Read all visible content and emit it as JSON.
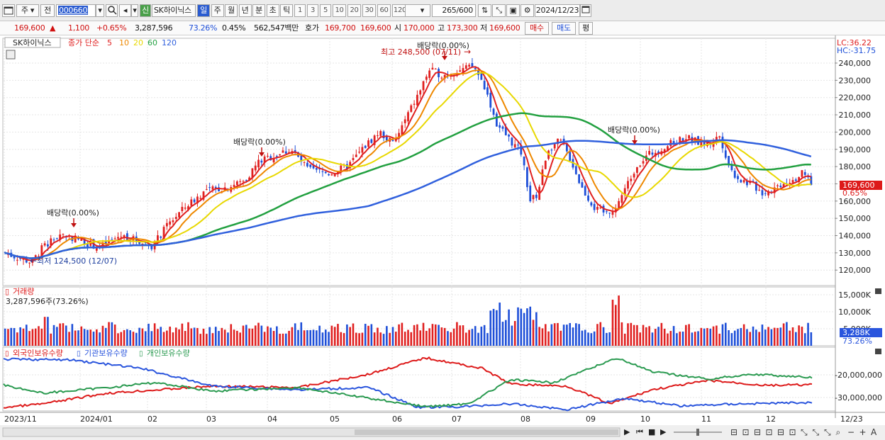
{
  "toolbar": {
    "ju": "주",
    "jeon": "전",
    "code": "000660",
    "name": "SK하이닉스",
    "sin": "신",
    "periods": [
      "일",
      "주",
      "월",
      "년",
      "분",
      "초",
      "틱"
    ],
    "nums": [
      "1",
      "3",
      "5",
      "10",
      "20",
      "30",
      "60",
      "120"
    ],
    "count": "265",
    "total": "/600",
    "date": "2024/12/23"
  },
  "quote": {
    "price": "169,600",
    "change": "1,100",
    "pct": "+0.65%",
    "volume": "3,287,596",
    "vol_ratio": "73.26%",
    "turnover": "0.45%",
    "amount": "562,547백만",
    "hoga_label": "호가",
    "ask": "169,700",
    "bid": "169,600",
    "open_label": "시",
    "open": "170,000",
    "high_label": "고",
    "high": "173,300",
    "low_label": "저",
    "low": "169,600",
    "buy": "매수",
    "sell": "매도",
    "flat": "평"
  },
  "legend": {
    "stock": "SK하이닉스",
    "ma_prefix": "종가 단순",
    "ma": [
      "5",
      "10",
      "20",
      "60",
      "120"
    ],
    "ma_colors": [
      "#e02020",
      "#ee8800",
      "#e8d800",
      "#22a040",
      "#3060dd"
    ]
  },
  "annot": {
    "lc": "LC:36.22",
    "hc": "HC:-31.75",
    "max": "최고 248,500 (07/11)",
    "min": "최저 124,500 (12/07)",
    "div": "배당락(0.00%)"
  },
  "vol_legend": {
    "title": "거래량",
    "value": "3,287,596주(73.26%)"
  },
  "holders": {
    "foreign": "외국인보유수량",
    "inst": "기관보유수량",
    "indiv": "개인보유수량"
  },
  "price_badge": {
    "price": "169,600",
    "pct": "0.65%"
  },
  "vol_badge": {
    "value": "3,288K",
    "pct": "73.26%"
  },
  "x_dates": [
    "2023/11",
    "2024/01",
    "02",
    "03",
    "04",
    "05",
    "06",
    "07",
    "08",
    "09",
    "10",
    "11",
    "12",
    "12/23"
  ],
  "y_price": [
    "240,000",
    "230,000",
    "220,000",
    "210,000",
    "200,000",
    "190,000",
    "180,000",
    "170,000",
    "160,000",
    "150,000",
    "140,000",
    "130,000",
    "120,000"
  ],
  "y_vol": [
    "15,000K",
    "10,000K",
    "5,000K"
  ],
  "y_hold": [
    "-20,000,000",
    "-30,000,000"
  ],
  "colors": {
    "up": "#e02020",
    "down": "#1e4fd8"
  }
}
